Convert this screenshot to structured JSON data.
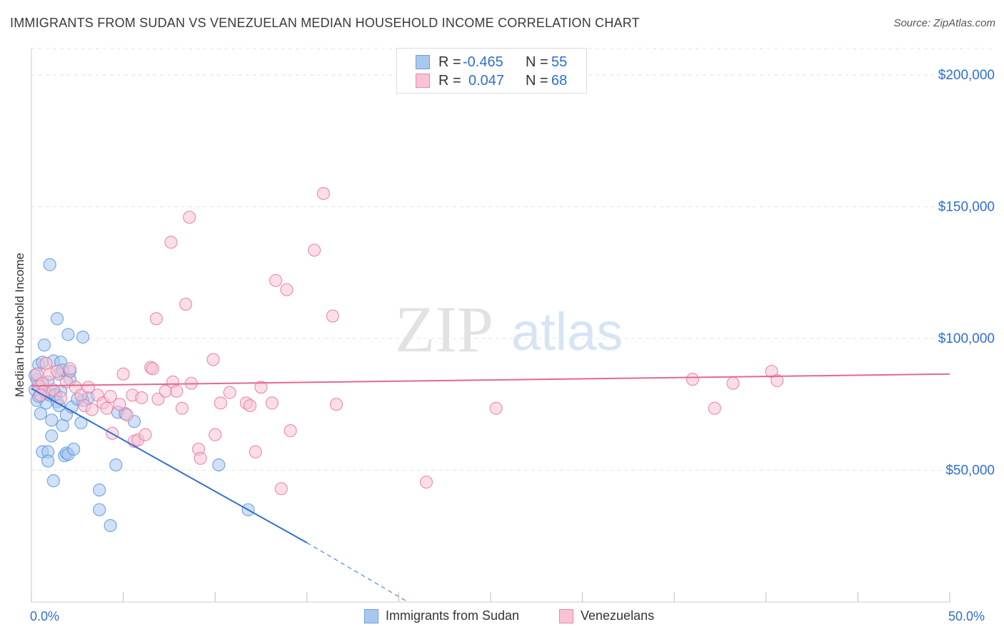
{
  "title": "IMMIGRANTS FROM SUDAN VS VENEZUELAN MEDIAN HOUSEHOLD INCOME CORRELATION CHART",
  "source": "Source: ZipAtlas.com",
  "watermark": {
    "zip": "ZIP",
    "atlas": "atlas"
  },
  "stats": [
    {
      "r_label": "R =",
      "r_value": "-0.465",
      "n_label": "N =",
      "n_value": "55",
      "color": "#a9c8f0",
      "border": "#6a9fe0"
    },
    {
      "r_label": "R =",
      "r_value": "0.047",
      "n_label": "N =",
      "n_value": "68",
      "color": "#f8c3d3",
      "border": "#e888a8"
    }
  ],
  "legend": [
    {
      "label": "Immigrants from Sudan",
      "color": "#a9c8f0",
      "border": "#6a9fe0"
    },
    {
      "label": "Venezuelans",
      "color": "#f8c3d3",
      "border": "#e888a8"
    }
  ],
  "chart_data": {
    "type": "scatter",
    "title": "IMMIGRANTS FROM SUDAN VS VENEZUELAN MEDIAN HOUSEHOLD INCOME CORRELATION CHART",
    "xlabel": "",
    "ylabel": "Median Household Income",
    "xlim": [
      0,
      50
    ],
    "ylim": [
      0,
      210000
    ],
    "x_tick_labels": [
      "0.0%",
      "50.0%"
    ],
    "y_ticks": [
      50000,
      100000,
      150000,
      200000
    ],
    "y_tick_labels": [
      "$50,000",
      "$100,000",
      "$150,000",
      "$200,000"
    ],
    "series": [
      {
        "name": "Immigrants from Sudan",
        "color": "#5b93dd",
        "fill": "#a9c8f0",
        "points": [
          [
            0.2,
            80500
          ],
          [
            0.3,
            76500
          ],
          [
            0.3,
            84500
          ],
          [
            0.4,
            90000
          ],
          [
            0.5,
            82000
          ],
          [
            0.5,
            71500
          ],
          [
            0.6,
            57000
          ],
          [
            0.6,
            91000
          ],
          [
            0.7,
            97500
          ],
          [
            0.8,
            79000
          ],
          [
            0.8,
            75500
          ],
          [
            0.9,
            57000
          ],
          [
            0.9,
            53500
          ],
          [
            1.0,
            78500
          ],
          [
            1.0,
            128000
          ],
          [
            1.1,
            69000
          ],
          [
            1.1,
            63000
          ],
          [
            1.2,
            46000
          ],
          [
            1.2,
            91500
          ],
          [
            1.3,
            79000
          ],
          [
            1.3,
            78500
          ],
          [
            1.4,
            107500
          ],
          [
            1.4,
            76000
          ],
          [
            1.5,
            74500
          ],
          [
            1.5,
            86500
          ],
          [
            1.6,
            91000
          ],
          [
            1.7,
            88000
          ],
          [
            1.7,
            67000
          ],
          [
            1.8,
            55500
          ],
          [
            1.9,
            56500
          ],
          [
            1.9,
            71000
          ],
          [
            2.0,
            101500
          ],
          [
            2.0,
            56000
          ],
          [
            2.1,
            84500
          ],
          [
            2.1,
            87500
          ],
          [
            2.2,
            74000
          ],
          [
            2.3,
            58000
          ],
          [
            2.7,
            68000
          ],
          [
            2.8,
            100500
          ],
          [
            2.8,
            76500
          ],
          [
            3.1,
            77500
          ],
          [
            3.7,
            42500
          ],
          [
            3.7,
            35000
          ],
          [
            4.3,
            29000
          ],
          [
            4.6,
            52000
          ],
          [
            4.7,
            72000
          ],
          [
            5.1,
            71500
          ],
          [
            5.6,
            68500
          ],
          [
            10.2,
            52000
          ],
          [
            11.8,
            35000
          ],
          [
            0.2,
            86000
          ],
          [
            0.4,
            78000
          ],
          [
            0.9,
            83500
          ],
          [
            1.6,
            80000
          ],
          [
            2.5,
            77000
          ]
        ]
      },
      {
        "name": "Venezuelans",
        "color": "#e8789c",
        "fill": "#f8c3d3",
        "points": [
          [
            0.3,
            86500
          ],
          [
            0.4,
            82000
          ],
          [
            0.6,
            83000
          ],
          [
            0.7,
            80000
          ],
          [
            0.8,
            90500
          ],
          [
            1.0,
            86500
          ],
          [
            1.2,
            80500
          ],
          [
            1.4,
            87500
          ],
          [
            1.6,
            77500
          ],
          [
            1.9,
            83500
          ],
          [
            2.1,
            88500
          ],
          [
            2.4,
            81500
          ],
          [
            2.7,
            78500
          ],
          [
            2.9,
            74500
          ],
          [
            3.1,
            81500
          ],
          [
            3.3,
            73000
          ],
          [
            3.6,
            78500
          ],
          [
            3.9,
            75500
          ],
          [
            4.1,
            73500
          ],
          [
            4.3,
            78000
          ],
          [
            4.4,
            64000
          ],
          [
            4.8,
            75000
          ],
          [
            5.0,
            86500
          ],
          [
            5.2,
            71000
          ],
          [
            5.5,
            78500
          ],
          [
            5.6,
            61000
          ],
          [
            5.8,
            61500
          ],
          [
            6.0,
            77500
          ],
          [
            6.2,
            63500
          ],
          [
            6.5,
            89000
          ],
          [
            6.6,
            88500
          ],
          [
            6.8,
            107500
          ],
          [
            6.9,
            77000
          ],
          [
            7.3,
            80000
          ],
          [
            7.6,
            136500
          ],
          [
            7.7,
            83500
          ],
          [
            7.9,
            80000
          ],
          [
            8.2,
            73500
          ],
          [
            8.4,
            113000
          ],
          [
            8.6,
            146000
          ],
          [
            8.7,
            83000
          ],
          [
            9.1,
            58000
          ],
          [
            9.2,
            54500
          ],
          [
            9.9,
            92000
          ],
          [
            10.0,
            63500
          ],
          [
            10.3,
            75500
          ],
          [
            10.8,
            79500
          ],
          [
            11.7,
            75500
          ],
          [
            11.9,
            74500
          ],
          [
            12.2,
            57000
          ],
          [
            12.5,
            81500
          ],
          [
            13.1,
            75500
          ],
          [
            13.3,
            122000
          ],
          [
            13.6,
            43000
          ],
          [
            13.9,
            118500
          ],
          [
            14.1,
            65000
          ],
          [
            15.4,
            133500
          ],
          [
            15.9,
            155000
          ],
          [
            16.4,
            108500
          ],
          [
            16.6,
            75000
          ],
          [
            21.5,
            45500
          ],
          [
            25.3,
            73500
          ],
          [
            36.0,
            84500
          ],
          [
            37.2,
            73500
          ],
          [
            38.2,
            83000
          ],
          [
            40.3,
            87500
          ],
          [
            40.6,
            84000
          ],
          [
            0.5,
            78500
          ]
        ]
      }
    ],
    "trend_lines": [
      {
        "series": "Immigrants from Sudan",
        "x0": 0,
        "y0": 81000,
        "x1": 15,
        "y1": 22500,
        "dashed_to_x": 20.5,
        "dashed_to_y": 0
      },
      {
        "series": "Venezuelans",
        "x0": 0,
        "y0": 82000,
        "x1": 50,
        "y1": 86500
      }
    ],
    "legend": [
      "Immigrants from Sudan",
      "Venezuelans"
    ],
    "grid": true
  }
}
